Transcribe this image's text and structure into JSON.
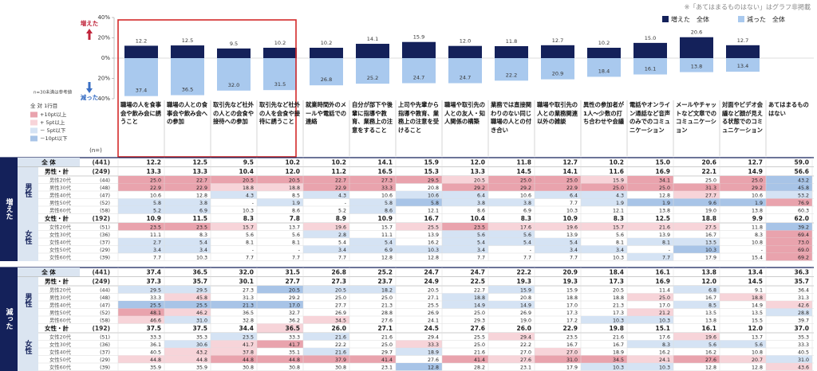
{
  "note": "※「あてはまるものはない」はグラフ非掲載",
  "chart_data": {
    "type": "bar",
    "categories": [
      "職場の人を食事会や飲み会に誘うこと",
      "職場の人との食事会や飲み会への参加",
      "取引先など社外の人との会食や接待への参加",
      "取引先など社外の人を会食や接待に誘うこと",
      "就業時間外のメールや電話での連絡",
      "自分が部下や後輩に指導や教育、業務上の注意をすること",
      "上司や先輩から指導や教育、業務上の注意を受けること",
      "職場や取引先の人との友人・知人関係の構築",
      "業務では直接関わりのない同じ職場の人との付き合い",
      "職場や取引先の人との業務関連以外の雑談",
      "異性の参加者が1人～少数の打ち合わせや会議",
      "電話やオンライン通話など音声のみでのコミュニケーション",
      "メールやチャットなど文章でのコミュニケーション",
      "対面やビデオ会議など顔が見える状態でのコミュニケーション",
      "あてはまるものはない"
    ],
    "series": [
      {
        "name": "増えた　全体",
        "color": "#14215a",
        "values": [
          12.2,
          12.5,
          9.5,
          10.2,
          10.2,
          14.1,
          15.9,
          12.0,
          11.8,
          12.7,
          10.2,
          15.0,
          20.6,
          12.7,
          null
        ],
        "value_labels": [
          "12.2",
          "12.5",
          "9.5",
          "10.2",
          "10.2",
          "14.1",
          "15.9",
          "12.0",
          "11.8",
          "12.7",
          "10.2",
          "15.0",
          "20.6",
          "12.7",
          null
        ]
      },
      {
        "name": "減った　全体",
        "color": "#a9c9ee",
        "values": [
          -37.4,
          -36.5,
          -32.0,
          -31.5,
          -26.8,
          -25.2,
          -24.7,
          -24.7,
          -22.2,
          -20.9,
          -18.4,
          -16.1,
          -13.8,
          -13.4,
          null
        ],
        "value_labels": [
          "37.4",
          "36.5",
          "32.0",
          "31.5",
          "26.8",
          "25.2",
          "24.7",
          "24.7",
          "22.2",
          "20.9",
          "18.4",
          "16.1",
          "13.8",
          "13.4",
          null
        ]
      }
    ],
    "ylim": [
      -40,
      40
    ],
    "yticks": [
      {
        "value": 40,
        "label": "40%"
      },
      {
        "value": 20,
        "label": "20%"
      },
      {
        "value": 0,
        "label": "0%"
      },
      {
        "value": -20,
        "label": "20%"
      },
      {
        "value": -40,
        "label": "40%"
      }
    ],
    "up_label": "増えた",
    "down_label": "減った",
    "sample_note": "n=30未満は参考値"
  },
  "legend": {
    "title": "全 対 1行目",
    "items": [
      {
        "label": "+10pt以上",
        "color": "#e9a3ad"
      },
      {
        "label": "+ 5pt以上",
        "color": "#f7d4d9"
      },
      {
        "label": "－ 5pt以下",
        "color": "#d5e3f4"
      },
      {
        "label": "－10pt以下",
        "color": "#a8c4e7"
      }
    ]
  },
  "table": {
    "n_header": "(n=)",
    "sections": [
      {
        "label": "増えた",
        "total": {
          "label": "全 体",
          "n": "(441)",
          "values": [
            "12.2",
            "12.5",
            "9.5",
            "10.2",
            "10.2",
            "14.1",
            "15.9",
            "12.0",
            "11.8",
            "12.7",
            "10.2",
            "15.0",
            "20.6",
            "12.7",
            "59.0"
          ]
        },
        "groups": [
          {
            "label": "男性",
            "rows": [
              {
                "label": "男性・計",
                "n": "(249)",
                "values": [
                  "13.3",
                  "13.3",
                  "10.4",
                  "12.0",
                  "11.2",
                  "16.5",
                  "15.3",
                  "13.3",
                  "14.5",
                  "14.1",
                  "11.6",
                  "16.9",
                  "22.1",
                  "14.9",
                  "56.6"
                ]
              },
              {
                "label": "男性20代",
                "n": "(44)",
                "values": [
                  "25.0",
                  "22.7",
                  "20.5",
                  "20.5",
                  "22.7",
                  "27.3",
                  "29.5",
                  "20.5",
                  "25.0",
                  "25.0",
                  "15.9",
                  "34.1",
                  "25.0",
                  "25.0",
                  "43.2"
                ]
              },
              {
                "label": "男性30代",
                "n": "(48)",
                "values": [
                  "22.9",
                  "22.9",
                  "18.8",
                  "18.8",
                  "22.9",
                  "33.3",
                  "20.8",
                  "29.2",
                  "29.2",
                  "22.9",
                  "25.0",
                  "25.0",
                  "31.3",
                  "29.2",
                  "45.8"
                ]
              },
              {
                "label": "男性40代",
                "n": "(47)",
                "values": [
                  "10.6",
                  "12.8",
                  "4.3",
                  "8.5",
                  "4.3",
                  "10.6",
                  "10.6",
                  "6.4",
                  "10.6",
                  "6.4",
                  "4.3",
                  "12.8",
                  "27.7",
                  "10.6",
                  "53.2"
                ]
              },
              {
                "label": "男性50代",
                "n": "(52)",
                "values": [
                  "5.8",
                  "3.8",
                  "-",
                  "1.9",
                  "-",
                  "5.8",
                  "5.8",
                  "3.8",
                  "3.8",
                  "7.7",
                  "1.9",
                  "1.9",
                  "9.6",
                  "1.9",
                  "76.9"
                ]
              },
              {
                "label": "男性60代",
                "n": "(58)",
                "values": [
                  "5.2",
                  "6.9",
                  "10.3",
                  "8.6",
                  "5.2",
                  "8.6",
                  "12.1",
                  "8.6",
                  "6.9",
                  "10.3",
                  "12.1",
                  "13.8",
                  "19.0",
                  "13.8",
                  "60.3"
                ]
              }
            ]
          },
          {
            "label": "女性",
            "rows": [
              {
                "label": "女性・計",
                "n": "(192)",
                "values": [
                  "10.9",
                  "11.5",
                  "8.3",
                  "7.8",
                  "8.9",
                  "10.9",
                  "16.7",
                  "10.4",
                  "8.3",
                  "10.9",
                  "8.3",
                  "12.5",
                  "18.8",
                  "9.9",
                  "62.0"
                ]
              },
              {
                "label": "女性20代",
                "n": "(51)",
                "values": [
                  "23.5",
                  "23.5",
                  "15.7",
                  "13.7",
                  "19.6",
                  "15.7",
                  "25.5",
                  "23.5",
                  "17.6",
                  "19.6",
                  "15.7",
                  "21.6",
                  "27.5",
                  "11.8",
                  "39.2"
                ]
              },
              {
                "label": "女性30代",
                "n": "(36)",
                "values": [
                  "11.1",
                  "8.3",
                  "5.6",
                  "5.6",
                  "2.8",
                  "11.1",
                  "13.9",
                  "5.6",
                  "5.6",
                  "13.9",
                  "5.6",
                  "13.9",
                  "16.7",
                  "8.3",
                  "69.4"
                ]
              },
              {
                "label": "女性40代",
                "n": "(37)",
                "values": [
                  "2.7",
                  "5.4",
                  "8.1",
                  "8.1",
                  "5.4",
                  "5.4",
                  "16.2",
                  "5.4",
                  "5.4",
                  "5.4",
                  "8.1",
                  "8.1",
                  "13.5",
                  "10.8",
                  "73.0"
                ]
              },
              {
                "label": "女性50代",
                "n": "(29)",
                "values": [
                  "3.4",
                  "3.4",
                  "-",
                  "-",
                  "3.4",
                  "6.9",
                  "10.3",
                  "3.4",
                  "-",
                  "3.4",
                  "3.4",
                  "-",
                  "10.3",
                  "-",
                  "69.0"
                ]
              },
              {
                "label": "女性60代",
                "n": "(39)",
                "values": [
                  "7.7",
                  "10.3",
                  "7.7",
                  "7.7",
                  "7.7",
                  "12.8",
                  "12.8",
                  "7.7",
                  "7.7",
                  "7.7",
                  "10.3",
                  "7.7",
                  "17.9",
                  "15.4",
                  "69.2"
                ]
              }
            ]
          }
        ]
      },
      {
        "label": "減った",
        "total": {
          "label": "全 体",
          "n": "(441)",
          "values": [
            "37.4",
            "36.5",
            "32.0",
            "31.5",
            "26.8",
            "25.2",
            "24.7",
            "24.7",
            "22.2",
            "20.9",
            "18.4",
            "16.1",
            "13.8",
            "13.4",
            "36.3"
          ]
        },
        "groups": [
          {
            "label": "男性",
            "rows": [
              {
                "label": "男性・計",
                "n": "(249)",
                "values": [
                  "37.3",
                  "35.7",
                  "30.1",
                  "27.7",
                  "27.3",
                  "23.7",
                  "24.9",
                  "22.5",
                  "19.3",
                  "19.3",
                  "17.3",
                  "16.9",
                  "12.0",
                  "14.5",
                  "35.7"
                ]
              },
              {
                "label": "男性20代",
                "n": "(44)",
                "values": [
                  "29.5",
                  "29.5",
                  "27.3",
                  "20.5",
                  "20.5",
                  "18.2",
                  "20.5",
                  "22.7",
                  "15.9",
                  "15.9",
                  "20.5",
                  "11.4",
                  "6.8",
                  "9.1",
                  "36.4"
                ]
              },
              {
                "label": "男性30代",
                "n": "(48)",
                "values": [
                  "33.3",
                  "45.8",
                  "31.3",
                  "29.2",
                  "25.0",
                  "25.0",
                  "27.1",
                  "18.8",
                  "20.8",
                  "18.8",
                  "18.8",
                  "25.0",
                  "16.7",
                  "18.8",
                  "31.3"
                ]
              },
              {
                "label": "男性40代",
                "n": "(47)",
                "values": [
                  "25.5",
                  "25.5",
                  "21.3",
                  "17.0",
                  "27.7",
                  "21.3",
                  "25.5",
                  "14.9",
                  "14.9",
                  "17.0",
                  "21.3",
                  "17.0",
                  "8.5",
                  "14.9",
                  "42.6"
                ]
              },
              {
                "label": "男性50代",
                "n": "(52)",
                "values": [
                  "48.1",
                  "46.2",
                  "36.5",
                  "32.7",
                  "26.9",
                  "28.8",
                  "26.9",
                  "25.0",
                  "26.9",
                  "17.3",
                  "17.3",
                  "21.2",
                  "13.5",
                  "13.5",
                  "28.8"
                ]
              },
              {
                "label": "男性60代",
                "n": "(58)",
                "values": [
                  "46.6",
                  "31.0",
                  "32.8",
                  "36.2",
                  "34.5",
                  "27.6",
                  "24.1",
                  "29.3",
                  "19.0",
                  "17.2",
                  "10.3",
                  "10.3",
                  "13.8",
                  "15.5",
                  "39.7"
                ]
              }
            ]
          },
          {
            "label": "女性",
            "rows": [
              {
                "label": "女性・計",
                "n": "(192)",
                "values": [
                  "37.5",
                  "37.5",
                  "34.4",
                  "36.5",
                  "26.0",
                  "27.1",
                  "24.5",
                  "27.6",
                  "26.0",
                  "22.9",
                  "19.8",
                  "15.1",
                  "16.1",
                  "12.0",
                  "37.0"
                ]
              },
              {
                "label": "女性20代",
                "n": "(51)",
                "values": [
                  "33.3",
                  "35.3",
                  "23.5",
                  "33.3",
                  "21.6",
                  "21.6",
                  "29.4",
                  "25.5",
                  "29.4",
                  "23.5",
                  "21.6",
                  "17.6",
                  "19.6",
                  "13.7",
                  "35.3"
                ]
              },
              {
                "label": "女性30代",
                "n": "(36)",
                "values": [
                  "36.1",
                  "30.6",
                  "41.7",
                  "41.7",
                  "22.2",
                  "25.0",
                  "33.3",
                  "25.0",
                  "22.2",
                  "16.7",
                  "16.7",
                  "8.3",
                  "5.6",
                  "5.6",
                  "33.3"
                ]
              },
              {
                "label": "女性40代",
                "n": "(37)",
                "values": [
                  "40.5",
                  "43.2",
                  "37.8",
                  "35.1",
                  "21.6",
                  "29.7",
                  "18.9",
                  "21.6",
                  "27.0",
                  "27.0",
                  "18.9",
                  "16.2",
                  "16.2",
                  "10.8",
                  "40.5"
                ]
              },
              {
                "label": "女性50代",
                "n": "(29)",
                "values": [
                  "44.8",
                  "44.8",
                  "44.8",
                  "44.8",
                  "37.9",
                  "41.4",
                  "27.6",
                  "41.4",
                  "27.6",
                  "31.0",
                  "34.5",
                  "24.1",
                  "27.6",
                  "20.7",
                  "31.0"
                ]
              },
              {
                "label": "女性60代",
                "n": "(39)",
                "values": [
                  "35.9",
                  "35.9",
                  "30.8",
                  "30.8",
                  "30.8",
                  "23.1",
                  "12.8",
                  "28.2",
                  "23.1",
                  "17.9",
                  "10.3",
                  "10.3",
                  "12.8",
                  "12.8",
                  "43.6"
                ]
              }
            ]
          }
        ]
      }
    ]
  }
}
